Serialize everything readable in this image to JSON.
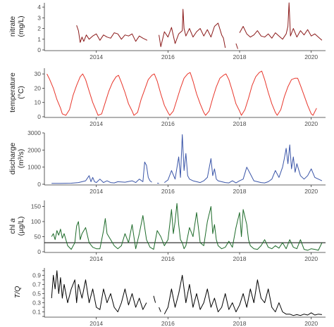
{
  "chart_data": {
    "type": "line",
    "x_axis": {
      "range": [
        2012.55,
        2020.4
      ],
      "tick_labels": [
        "2014",
        "2016",
        "2018",
        "2020"
      ],
      "tick_values": [
        2014,
        2016,
        2018,
        2020
      ]
    },
    "grid": false,
    "legend": "none",
    "panels": [
      {
        "id": "nitrate",
        "ylabel_line1": "nitrate",
        "ylabel_line2": "(mg/L)",
        "ylim": [
          0,
          4.4
        ],
        "yticks": [
          0,
          1,
          2,
          3,
          4
        ],
        "color": "#8b1a1a",
        "x": [
          2013.45,
          2013.5,
          2013.55,
          2013.6,
          2013.65,
          2013.72,
          2013.8,
          2013.9,
          2014.0,
          2014.1,
          2014.2,
          2014.3,
          2014.4,
          2014.5,
          2014.6,
          2014.7,
          2014.8,
          2014.9,
          2015.0,
          2015.1,
          2015.2,
          2015.3,
          2015.42,
          null,
          2015.75,
          2015.8,
          2015.9,
          2016.0,
          2016.1,
          2016.2,
          2016.3,
          2016.4,
          2016.42,
          2016.45,
          2016.5,
          2016.6,
          2016.7,
          2016.8,
          2016.9,
          2017.0,
          2017.1,
          2017.2,
          2017.3,
          2017.4,
          2017.5,
          2017.55,
          2017.6,
          null,
          2017.9,
          2017.95,
          null,
          2018.0,
          2018.1,
          2018.2,
          2018.3,
          2018.4,
          2018.5,
          2018.6,
          2018.7,
          2018.8,
          2018.9,
          2019.0,
          2019.1,
          2019.2,
          2019.3,
          2019.35,
          2019.38,
          2019.42,
          2019.5,
          2019.6,
          2019.7,
          2019.8,
          2019.9,
          2020.0,
          2020.1,
          2020.2,
          2020.3
        ],
        "values": [
          2.3,
          1.8,
          0.7,
          1.2,
          0.8,
          1.4,
          1.0,
          1.3,
          1.5,
          0.9,
          1.4,
          1.2,
          1.1,
          1.6,
          1.5,
          1.0,
          1.4,
          1.3,
          1.5,
          0.8,
          1.3,
          1.1,
          0.9,
          null,
          1.4,
          0.3,
          1.7,
          1.2,
          2.1,
          0.6,
          1.5,
          1.8,
          3.8,
          2.0,
          1.3,
          2.0,
          1.2,
          1.7,
          2.0,
          1.3,
          1.9,
          1.2,
          2.2,
          2.5,
          1.4,
          1.1,
          0.2,
          null,
          0.6,
          0.1,
          null,
          1.6,
          2.2,
          1.5,
          1.2,
          1.4,
          1.8,
          1.3,
          1.2,
          1.5,
          1.1,
          1.6,
          1.3,
          1.0,
          1.5,
          2.2,
          4.4,
          1.3,
          2.0,
          1.2,
          1.8,
          1.4,
          1.9,
          1.3,
          1.5,
          1.2,
          0.9
        ]
      },
      {
        "id": "temperature",
        "ylabel_line1": "temperature",
        "ylabel_line2": "(°C)",
        "ylim": [
          0,
          34
        ],
        "yticks": [
          0,
          10,
          20,
          30
        ],
        "color": "#e8362b",
        "x": [
          2012.62,
          2012.7,
          2012.8,
          2012.9,
          2013.0,
          2013.05,
          2013.15,
          2013.25,
          2013.35,
          2013.45,
          2013.55,
          2013.62,
          2013.7,
          2013.8,
          2013.9,
          2014.0,
          2014.05,
          2014.15,
          2014.25,
          2014.35,
          2014.45,
          2014.55,
          2014.62,
          2014.7,
          2014.8,
          2014.9,
          2015.0,
          2015.05,
          2015.15,
          2015.25,
          2015.35,
          2015.45,
          2015.55,
          2015.62,
          2015.7,
          2015.8,
          2015.9,
          2016.0,
          2016.05,
          2016.15,
          2016.25,
          2016.35,
          2016.45,
          2016.55,
          2016.62,
          2016.7,
          2016.8,
          2016.9,
          2017.0,
          2017.05,
          2017.15,
          2017.25,
          2017.35,
          2017.45,
          2017.55,
          2017.62,
          2017.7,
          2017.8,
          2017.9,
          2018.0,
          2018.05,
          2018.15,
          2018.25,
          2018.35,
          2018.45,
          2018.55,
          2018.62,
          2018.7,
          2018.8,
          2018.9,
          2019.0,
          2019.05,
          2019.15,
          2019.25,
          2019.35,
          2019.45,
          2019.55,
          2019.62,
          2019.7,
          2019.8,
          2019.9,
          2020.0,
          2020.05,
          2020.15
        ],
        "values": [
          30,
          26,
          20,
          12,
          6,
          2,
          1,
          5,
          15,
          22,
          28,
          30,
          26,
          18,
          10,
          4,
          1,
          2,
          10,
          18,
          24,
          28,
          29,
          24,
          17,
          9,
          4,
          1,
          3,
          12,
          19,
          26,
          29,
          30,
          25,
          16,
          8,
          3,
          1,
          4,
          12,
          20,
          27,
          30,
          31,
          25,
          16,
          9,
          3,
          1,
          4,
          13,
          21,
          27,
          29,
          30,
          26,
          18,
          9,
          4,
          1,
          5,
          13,
          22,
          28,
          31,
          32,
          26,
          17,
          9,
          3,
          1,
          5,
          14,
          21,
          26,
          27,
          27,
          22,
          15,
          8,
          2,
          1,
          6
        ]
      },
      {
        "id": "discharge",
        "ylabel_line1": "discharge",
        "ylabel_line2": "(m³/s)",
        "ylim": [
          0,
          3000
        ],
        "yticks": [
          0,
          1000,
          2000,
          3000
        ],
        "color": "#3a55a8",
        "x": [
          2012.75,
          2013.0,
          2013.3,
          2013.5,
          2013.7,
          2013.8,
          2013.85,
          2013.9,
          2013.95,
          2014.0,
          2014.1,
          2014.2,
          2014.3,
          2014.4,
          2014.5,
          2014.6,
          2014.8,
          2015.0,
          2015.1,
          2015.2,
          2015.3,
          2015.35,
          2015.4,
          2015.45,
          2015.5,
          2015.55,
          null,
          2015.7,
          2015.75,
          null,
          2015.9,
          2016.0,
          2016.1,
          2016.2,
          2016.3,
          2016.35,
          2016.4,
          2016.45,
          2016.5,
          2016.55,
          2016.6,
          2016.7,
          2016.8,
          2016.9,
          2017.0,
          2017.1,
          2017.2,
          2017.25,
          2017.3,
          2017.35,
          2017.4,
          2017.5,
          2017.6,
          2017.7,
          2017.8,
          2017.9,
          2018.0,
          2018.1,
          2018.2,
          2018.3,
          2018.4,
          2018.5,
          2018.6,
          2018.7,
          2018.8,
          2018.9,
          2019.0,
          2019.1,
          2019.2,
          2019.25,
          2019.3,
          2019.35,
          2019.4,
          2019.45,
          2019.5,
          2019.55,
          2019.6,
          2019.7,
          2019.8,
          2019.9,
          2020.0,
          2020.1,
          2020.2,
          2020.3
        ],
        "values": [
          50,
          50,
          60,
          100,
          200,
          500,
          150,
          400,
          150,
          100,
          300,
          100,
          200,
          100,
          80,
          150,
          120,
          200,
          100,
          300,
          150,
          1300,
          1100,
          400,
          200,
          120,
          null,
          60,
          50,
          null,
          100,
          250,
          800,
          300,
          1600,
          400,
          2900,
          800,
          1800,
          500,
          300,
          200,
          150,
          100,
          200,
          400,
          1500,
          500,
          900,
          300,
          200,
          150,
          100,
          80,
          200,
          80,
          200,
          300,
          1000,
          600,
          200,
          150,
          100,
          80,
          150,
          300,
          800,
          400,
          1000,
          1500,
          2100,
          1200,
          2300,
          900,
          1600,
          700,
          1200,
          500,
          300,
          500,
          900,
          400,
          300,
          200
        ]
      },
      {
        "id": "chla",
        "ylabel_prefix": "chl ",
        "ylabel_italic": "a",
        "ylabel_line2": "(µg/L)",
        "ylim": [
          0,
          170
        ],
        "yticks": [
          0,
          50,
          100,
          150
        ],
        "reference_line_value": 30,
        "color": "#1e6b2a",
        "x": [
          2012.75,
          2012.8,
          2012.85,
          2012.9,
          2012.95,
          2013.0,
          2013.05,
          2013.1,
          2013.2,
          2013.3,
          2013.4,
          2013.45,
          2013.5,
          2013.55,
          2013.6,
          2013.7,
          2013.8,
          2013.9,
          2014.0,
          2014.1,
          2014.2,
          2014.25,
          2014.3,
          2014.4,
          2014.5,
          2014.6,
          2014.7,
          2014.8,
          2014.9,
          2015.0,
          2015.1,
          2015.2,
          2015.3,
          2015.4,
          2015.5,
          2015.6,
          2015.7,
          2015.8,
          2015.9,
          2016.0,
          2016.1,
          2016.15,
          2016.2,
          2016.25,
          2016.3,
          2016.35,
          2016.4,
          2016.45,
          2016.5,
          2016.6,
          2016.7,
          2016.8,
          2016.9,
          2017.0,
          2017.1,
          2017.2,
          2017.25,
          2017.3,
          2017.35,
          2017.4,
          2017.5,
          2017.6,
          2017.7,
          2017.8,
          2017.9,
          2018.0,
          2018.05,
          2018.1,
          2018.2,
          2018.25,
          2018.3,
          2018.4,
          2018.5,
          2018.6,
          2018.7,
          2018.8,
          2018.9,
          2019.0,
          2019.1,
          2019.2,
          2019.3,
          2019.4,
          2019.5,
          2019.6,
          2019.7,
          2019.8,
          2019.9,
          2020.0,
          2020.1,
          2020.2,
          2020.3
        ],
        "values": [
          50,
          60,
          40,
          70,
          55,
          75,
          45,
          60,
          20,
          8,
          30,
          85,
          100,
          40,
          60,
          80,
          30,
          15,
          10,
          10,
          70,
          110,
          60,
          40,
          20,
          10,
          20,
          60,
          30,
          90,
          10,
          60,
          120,
          40,
          15,
          8,
          70,
          50,
          20,
          40,
          140,
          60,
          100,
          160,
          90,
          40,
          30,
          10,
          20,
          80,
          50,
          130,
          30,
          20,
          100,
          150,
          60,
          90,
          40,
          20,
          10,
          15,
          35,
          15,
          80,
          130,
          50,
          140,
          90,
          40,
          20,
          10,
          8,
          20,
          40,
          15,
          10,
          20,
          12,
          30,
          10,
          40,
          15,
          10,
          40,
          8,
          5,
          10,
          8,
          5,
          30
        ]
      },
      {
        "id": "tq",
        "ylabel_italic": "T/Q",
        "ylim": [
          0,
          1.06
        ],
        "yticks": [
          0,
          0.1,
          0.2,
          0.3,
          0.4,
          0.5,
          0.6,
          0.7,
          0.8,
          0.9,
          1.0
        ],
        "ytick_labels": [
          "",
          "0.1",
          "",
          "0.3",
          "",
          "0.5",
          "",
          "0.7",
          "",
          "0.9",
          ""
        ],
        "color": "#000000",
        "x": [
          2012.75,
          2012.8,
          2012.85,
          2012.9,
          2012.95,
          2013.0,
          2013.05,
          2013.1,
          2013.2,
          2013.3,
          2013.4,
          2013.45,
          2013.5,
          2013.6,
          2013.7,
          2013.8,
          2013.9,
          2014.0,
          2014.1,
          2014.2,
          2014.3,
          2014.4,
          2014.5,
          2014.6,
          2014.7,
          2014.8,
          2014.9,
          2015.0,
          2015.1,
          2015.2,
          2015.3,
          2015.4,
          null,
          2015.6,
          2015.65,
          null,
          2015.75,
          2015.8,
          null,
          2015.9,
          2016.0,
          2016.1,
          2016.2,
          2016.3,
          2016.4,
          2016.5,
          2016.6,
          2016.7,
          2016.8,
          2016.9,
          2017.0,
          2017.1,
          2017.2,
          2017.3,
          2017.4,
          2017.5,
          2017.6,
          2017.7,
          2017.8,
          2017.9,
          2018.0,
          2018.1,
          2018.2,
          2018.3,
          2018.4,
          2018.5,
          2018.6,
          2018.7,
          2018.8,
          2018.9,
          2019.0,
          2019.1,
          2019.2,
          2019.3,
          2019.4,
          2019.5,
          2019.6,
          2019.7,
          2019.8,
          2019.9,
          2020.0,
          2020.1,
          2020.2,
          2020.3
        ],
        "values": [
          0.4,
          0.9,
          0.6,
          1.0,
          0.5,
          0.85,
          0.4,
          0.7,
          0.3,
          0.6,
          0.8,
          0.3,
          0.7,
          0.4,
          0.8,
          0.3,
          0.6,
          0.2,
          0.15,
          0.6,
          0.3,
          0.5,
          0.2,
          0.1,
          0.3,
          0.6,
          0.25,
          0.5,
          0.2,
          0.4,
          0.15,
          0.3,
          null,
          0.45,
          0.3,
          null,
          0.2,
          0.1,
          null,
          0.05,
          0.2,
          0.6,
          0.2,
          0.5,
          0.9,
          0.3,
          0.7,
          0.2,
          0.5,
          0.15,
          0.3,
          0.6,
          0.2,
          0.4,
          0.1,
          0.2,
          0.5,
          0.15,
          0.3,
          0.1,
          0.25,
          0.5,
          0.2,
          0.6,
          0.3,
          0.8,
          0.4,
          0.3,
          0.6,
          0.2,
          0.1,
          0.3,
          0.1,
          0.05,
          0.05,
          0.02,
          0.04,
          0.02,
          0.05,
          0.03,
          0.08,
          0.03,
          0.05,
          0.04
        ]
      }
    ]
  }
}
